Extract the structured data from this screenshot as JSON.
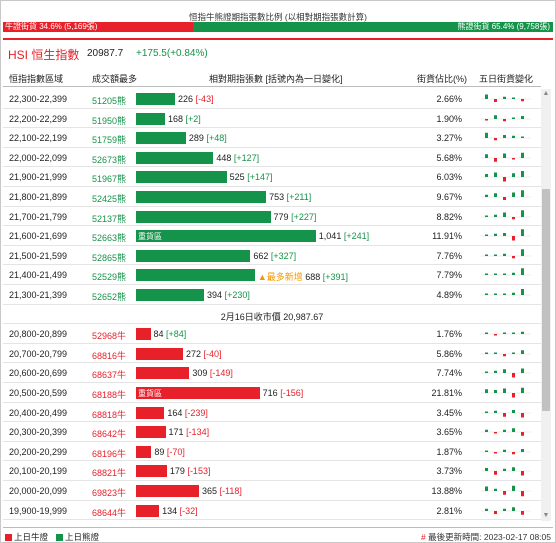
{
  "ratio": {
    "title": "恒指牛熊證期指張數比例 (以相對期指張數計算)",
    "bull_label": "牛證街貨 34.6% (5,169張)",
    "bear_label": "熊證街貨 65.4% (9,758張)",
    "bull_pct": 34.6,
    "bear_pct": 65.4
  },
  "index": {
    "name": "HSI 恒生指數",
    "value": "20987.7",
    "change": "+175.5(+0.84%)"
  },
  "headers": {
    "range": "恒指指數區域",
    "top_code": "成交額最多",
    "contracts": "相對期指張數 [括號內為一日變化]",
    "share": "街貨佔比(%)",
    "five_day": "五日街貨變化"
  },
  "max_contracts": 1100,
  "bear_rows": [
    {
      "range": "22,300-22,399",
      "code": "51205熊",
      "contracts": 226,
      "change": "[-43]",
      "share": "2.66%",
      "tag": "",
      "hot": "",
      "spark": [
        0.6,
        -0.4,
        0.3,
        0.2,
        -0.3
      ]
    },
    {
      "range": "22,200-22,299",
      "code": "51950熊",
      "contracts": 168,
      "change": "[+2]",
      "share": "1.90%",
      "tag": "",
      "hot": "",
      "spark": [
        -0.2,
        0.5,
        -0.3,
        0.2,
        0.4
      ]
    },
    {
      "range": "22,100-22,199",
      "code": "51759熊",
      "contracts": 289,
      "change": "[+48]",
      "share": "3.27%",
      "tag": "",
      "hot": "",
      "spark": [
        0.7,
        -0.3,
        0.4,
        0.3,
        0.2
      ]
    },
    {
      "range": "22,000-22,099",
      "code": "52673熊",
      "contracts": 448,
      "change": "[+127]",
      "share": "5.68%",
      "tag": "",
      "hot": "",
      "spark": [
        0.5,
        -0.5,
        0.6,
        -0.2,
        0.7
      ]
    },
    {
      "range": "21,900-21,999",
      "code": "51967熊",
      "contracts": 525,
      "change": "[+147]",
      "share": "6.03%",
      "tag": "",
      "hot": "",
      "spark": [
        0.4,
        0.6,
        -0.6,
        0.5,
        0.8
      ]
    },
    {
      "range": "21,800-21,899",
      "code": "52425熊",
      "contracts": 753,
      "change": "[+211]",
      "share": "9.67%",
      "tag": "",
      "hot": "",
      "spark": [
        0.3,
        0.5,
        -0.4,
        0.6,
        0.9
      ]
    },
    {
      "range": "21,700-21,799",
      "code": "52137熊",
      "contracts": 779,
      "change": "[+227]",
      "share": "8.82%",
      "tag": "",
      "hot": "",
      "spark": [
        0.2,
        0.3,
        0.6,
        -0.3,
        0.9
      ]
    },
    {
      "range": "21,600-21,699",
      "code": "52663熊",
      "contracts": 1041,
      "change": "[+241]",
      "share": "11.91%",
      "tag": "重貨區",
      "hot": "",
      "spark": [
        0.2,
        0.3,
        0.4,
        -0.6,
        0.9
      ]
    },
    {
      "range": "21,500-21,599",
      "code": "52865熊",
      "contracts": 662,
      "change": "[+327]",
      "share": "7.76%",
      "tag": "",
      "hot": "",
      "spark": [
        0.1,
        0.2,
        0.3,
        -0.3,
        0.9
      ]
    },
    {
      "range": "21,400-21,499",
      "code": "52529熊",
      "contracts": 688,
      "change": "[+391]",
      "share": "7.79%",
      "tag": "",
      "hot": "▲最多新增",
      "spark": [
        0.1,
        0.2,
        0.2,
        0.3,
        0.9
      ]
    },
    {
      "range": "21,300-21,399",
      "code": "52652熊",
      "contracts": 394,
      "change": "[+230]",
      "share": "4.89%",
      "tag": "",
      "hot": "",
      "spark": [
        0.1,
        0.1,
        0.2,
        0.3,
        0.8
      ]
    }
  ],
  "separator": "2月16日收市價 20,987.67",
  "bull_rows": [
    {
      "range": "20,800-20,899",
      "code": "52968牛",
      "contracts": 84,
      "change": "[+84]",
      "share": "1.76%",
      "tag": "",
      "spark": [
        0.1,
        -0.1,
        0.1,
        0.1,
        0.3
      ]
    },
    {
      "range": "20,700-20,799",
      "code": "68816牛",
      "contracts": 272,
      "change": "[-40]",
      "share": "5.86%",
      "tag": "",
      "spark": [
        0.1,
        0.2,
        -0.3,
        0.2,
        0.5
      ]
    },
    {
      "range": "20,600-20,699",
      "code": "68637牛",
      "contracts": 309,
      "change": "[-149]",
      "share": "7.74%",
      "tag": "",
      "spark": [
        0.1,
        0.3,
        0.5,
        -0.6,
        0.6
      ]
    },
    {
      "range": "20,500-20,599",
      "code": "68188牛",
      "contracts": 716,
      "change": "[-156]",
      "share": "21.81%",
      "tag": "重貨區",
      "spark": [
        0.5,
        0.4,
        0.6,
        -0.6,
        0.7
      ]
    },
    {
      "range": "20,400-20,499",
      "code": "68818牛",
      "contracts": 164,
      "change": "[-239]",
      "share": "3.45%",
      "tag": "",
      "spark": [
        0.2,
        0.3,
        -0.5,
        0.4,
        -0.6
      ]
    },
    {
      "range": "20,300-20,399",
      "code": "68642牛",
      "contracts": 171,
      "change": "[-134]",
      "share": "3.65%",
      "tag": "",
      "spark": [
        0.3,
        -0.2,
        0.3,
        0.5,
        -0.5
      ]
    },
    {
      "range": "20,200-20,299",
      "code": "68196牛",
      "contracts": 89,
      "change": "[-70]",
      "share": "1.87%",
      "tag": "",
      "spark": [
        0.2,
        -0.2,
        0.3,
        -0.3,
        0.4
      ]
    },
    {
      "range": "20,100-20,199",
      "code": "68821牛",
      "contracts": 179,
      "change": "[-153]",
      "share": "3.73%",
      "tag": "",
      "spark": [
        0.4,
        -0.5,
        0.3,
        0.5,
        -0.6
      ]
    },
    {
      "range": "20,000-20,099",
      "code": "69823牛",
      "contracts": 365,
      "change": "[-118]",
      "share": "13.88%",
      "tag": "",
      "spark": [
        0.6,
        0.3,
        -0.5,
        0.7,
        -0.7
      ]
    },
    {
      "range": "19,900-19,999",
      "code": "68644牛",
      "contracts": 134,
      "change": "[-32]",
      "share": "2.81%",
      "tag": "",
      "spark": [
        0.3,
        -0.4,
        0.3,
        0.5,
        -0.5
      ]
    }
  ],
  "footer": {
    "bull_legend": "上日牛證",
    "bear_legend": "上日熊證",
    "hash": "#",
    "updated": "最後更新時間: 2023-02-17 08:05"
  },
  "colors": {
    "bull": "#e8202a",
    "bear": "#16934a",
    "hot": "#f39800"
  },
  "icons": {
    "scroll_up": "triangle-up-icon",
    "scroll_down": "triangle-down-icon"
  }
}
